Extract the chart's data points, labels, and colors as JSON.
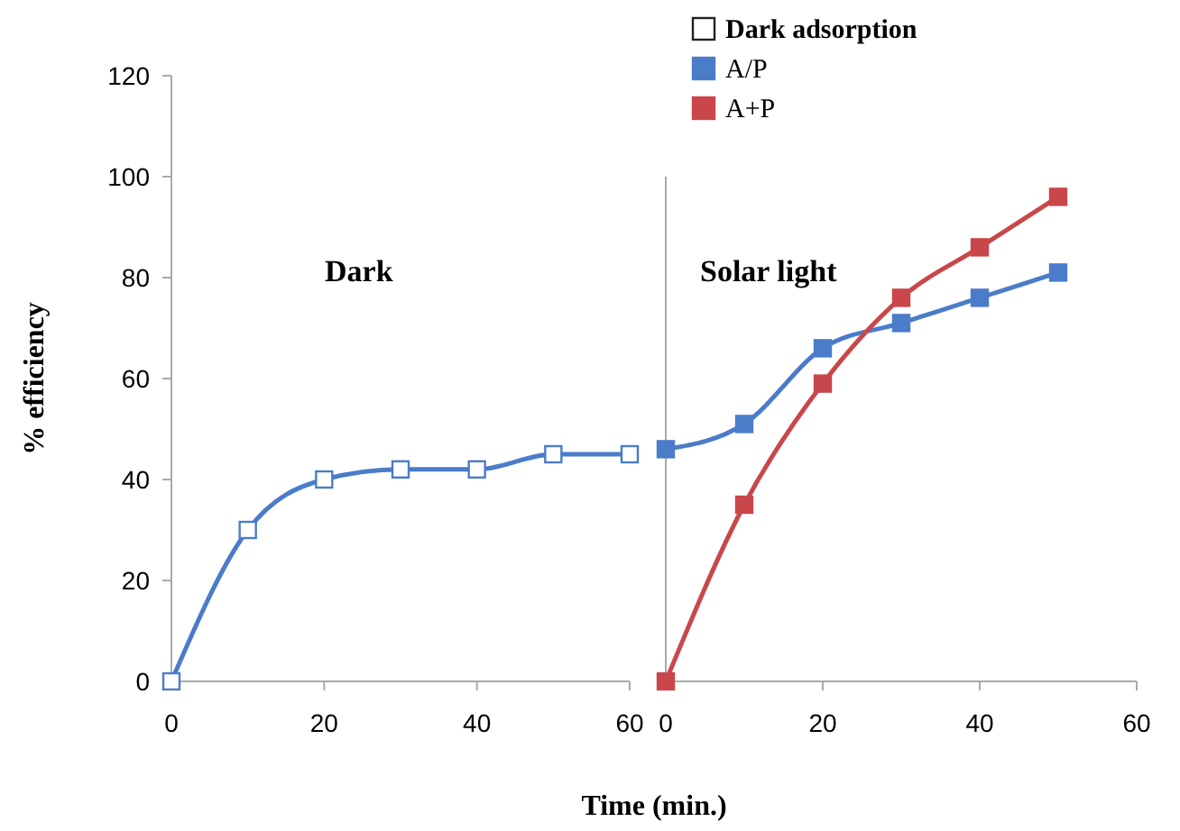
{
  "chart_data": [
    {
      "type": "line",
      "ylabel": "% efficiency",
      "xlabel": "Time (min.)",
      "x": [
        0,
        10,
        20,
        30,
        40,
        50,
        60
      ],
      "xlim": [
        0,
        60
      ],
      "xticks": [
        0,
        20,
        40,
        60
      ],
      "ylim": [
        0,
        120
      ],
      "yticks": [
        0,
        20,
        40,
        60,
        80,
        100,
        120
      ],
      "marker": "square",
      "legend": "top",
      "annotations": [
        "Dark"
      ],
      "series": [
        {
          "name": "Dark adsorption",
          "color": "#4a7cc9",
          "values": [
            0,
            30,
            40,
            42,
            42,
            45,
            45
          ]
        }
      ]
    },
    {
      "type": "line",
      "x": [
        0,
        10,
        20,
        30,
        40,
        50
      ],
      "xlim": [
        0,
        60
      ],
      "xticks": [
        0,
        20,
        40,
        60
      ],
      "ylim": [
        0,
        120
      ],
      "tick_labels": "x",
      "marker": "square",
      "legend": "top",
      "annotations": [
        "Solar light"
      ],
      "series": [
        {
          "name": "A/P",
          "color": "#4a7cc9",
          "values": [
            46,
            51,
            66,
            71,
            76,
            81
          ]
        },
        {
          "name": "A+P",
          "color": "#c9474a",
          "values": [
            0,
            35,
            59,
            76,
            86,
            96
          ]
        }
      ]
    }
  ]
}
